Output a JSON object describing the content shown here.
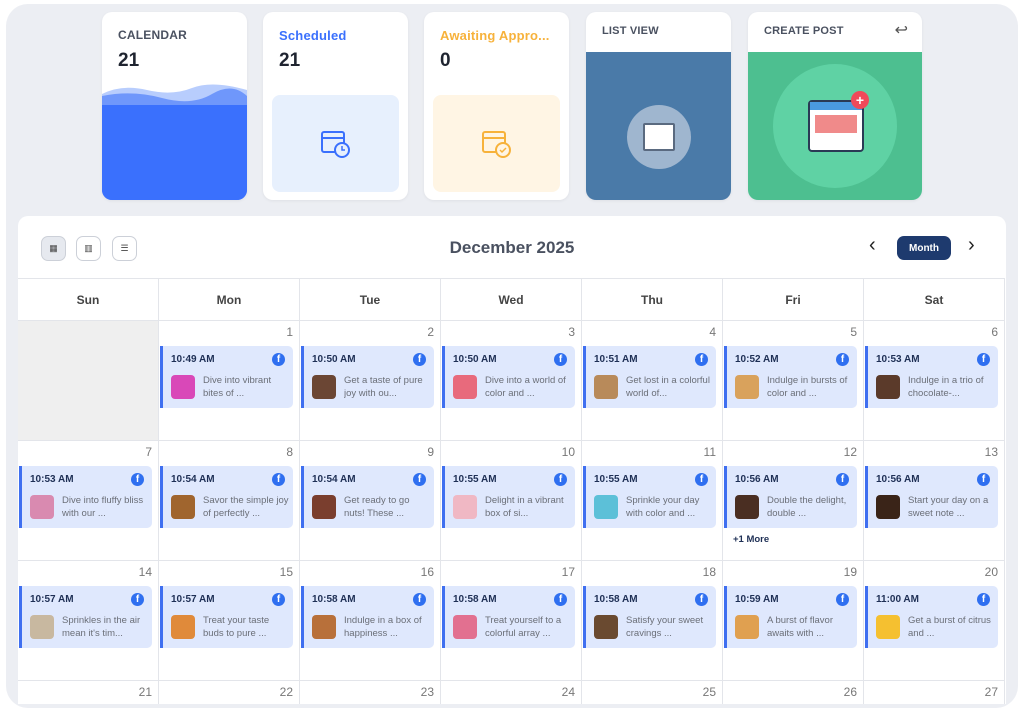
{
  "cards": [
    {
      "label": "CALENDAR",
      "count": "21",
      "color": "#3a70fd"
    },
    {
      "label": "Scheduled",
      "count": "21",
      "color": "#3a70fd"
    },
    {
      "label": "Awaiting Appro...",
      "count": "0",
      "color": "#f7b23b"
    },
    {
      "label": "LIST VIEW",
      "color": "#4a7aa8"
    },
    {
      "label": "CREATE POST",
      "color": "#4dbf90"
    }
  ],
  "calendar": {
    "title": "December 2025",
    "view_label": "Month",
    "prev_icon": "chevron-left-icon",
    "next_icon": "chevron-right-icon",
    "weekdays": [
      "Sun",
      "Mon",
      "Tue",
      "Wed",
      "Thu",
      "Fri",
      "Sat"
    ],
    "weeks": [
      [
        {
          "day": ""
        },
        {
          "day": "1",
          "time": "10:49 AM",
          "text": "Dive into vibrant bites of ...",
          "thumb": "#d948b8"
        },
        {
          "day": "2",
          "time": "10:50 AM",
          "text": "Get a taste of pure joy with ou...",
          "thumb": "#6b4634"
        },
        {
          "day": "3",
          "time": "10:50 AM",
          "text": "Dive into a world of color and ...",
          "thumb": "#e86a7c"
        },
        {
          "day": "4",
          "time": "10:51 AM",
          "text": "Get lost in a colorful world of...",
          "thumb": "#b88a5a"
        },
        {
          "day": "5",
          "time": "10:52 AM",
          "text": "Indulge in bursts of color and ...",
          "thumb": "#d9a25c"
        },
        {
          "day": "6",
          "time": "10:53 AM",
          "text": "Indulge in a trio of chocolate-...",
          "thumb": "#5b3a2a"
        }
      ],
      [
        {
          "day": "7",
          "time": "10:53 AM",
          "text": "Dive into fluffy bliss with our ...",
          "thumb": "#d98ab0"
        },
        {
          "day": "8",
          "time": "10:54 AM",
          "text": "Savor the simple joy of perfectly ...",
          "thumb": "#a0652e"
        },
        {
          "day": "9",
          "time": "10:54 AM",
          "text": "Get ready to go nuts! These ...",
          "thumb": "#7a3e2e"
        },
        {
          "day": "10",
          "time": "10:55 AM",
          "text": "Delight in a vibrant box of si...",
          "thumb": "#f0b8c4"
        },
        {
          "day": "11",
          "time": "10:55 AM",
          "text": "Sprinkle your day with color and ...",
          "thumb": "#5cc0d8"
        },
        {
          "day": "12",
          "time": "10:56 AM",
          "text": "Double the delight, double ...",
          "thumb": "#4a2e22",
          "more": "+1 More"
        },
        {
          "day": "13",
          "time": "10:56 AM",
          "text": "Start your day on a sweet note ...",
          "thumb": "#3a2418"
        }
      ],
      [
        {
          "day": "14",
          "time": "10:57 AM",
          "text": "Sprinkles in the air mean it's tim...",
          "thumb": "#c8b8a0"
        },
        {
          "day": "15",
          "time": "10:57 AM",
          "text": "Treat your taste buds to pure ...",
          "thumb": "#e08a3a"
        },
        {
          "day": "16",
          "time": "10:58 AM",
          "text": "Indulge in a box of happiness ...",
          "thumb": "#b8703a"
        },
        {
          "day": "17",
          "time": "10:58 AM",
          "text": "Treat yourself to a colorful array ...",
          "thumb": "#e27090"
        },
        {
          "day": "18",
          "time": "10:58 AM",
          "text": "Satisfy your sweet cravings ...",
          "thumb": "#6a4a30"
        },
        {
          "day": "19",
          "time": "10:59 AM",
          "text": "A burst of flavor awaits with ...",
          "thumb": "#e0a050"
        },
        {
          "day": "20",
          "time": "11:00 AM",
          "text": "Get a burst of citrus and ...",
          "thumb": "#f5c030"
        }
      ],
      [
        {
          "day": "21"
        },
        {
          "day": "22"
        },
        {
          "day": "23"
        },
        {
          "day": "24"
        },
        {
          "day": "25"
        },
        {
          "day": "26"
        },
        {
          "day": "27"
        }
      ]
    ]
  }
}
